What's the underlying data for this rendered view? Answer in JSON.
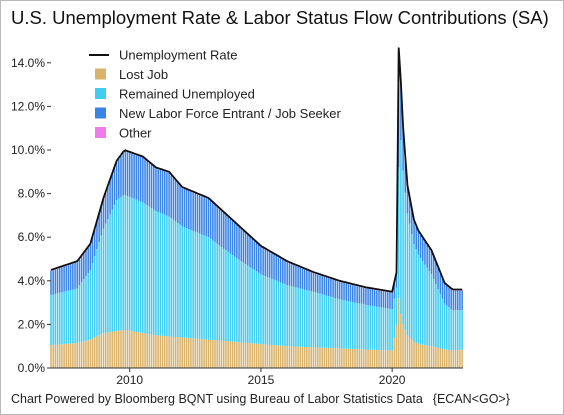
{
  "title": "U.S. Unemployment Rate & Labor Status Flow Contributions (SA)",
  "footer": {
    "source": "Chart Powered by Bloomberg BQNT using Bureau of Labor Statistics Data",
    "code": "{ECAN<GO>}"
  },
  "colors": {
    "lost_job": "#d9b36c",
    "remained_unemployed": "#40cdf0",
    "new_entrant": "#3a84e6",
    "other": "#f07cec",
    "rate_line": "#111111"
  },
  "chart_data": {
    "type": "bar",
    "x_range": [
      2007.0,
      2022.7
    ],
    "xticks": [
      {
        "value": 2010,
        "label": "2010"
      },
      {
        "value": 2015,
        "label": "2015"
      },
      {
        "value": 2020,
        "label": "2020"
      }
    ],
    "ylim": [
      0,
      15
    ],
    "yticks": [
      {
        "value": 0,
        "label": "0.0%"
      },
      {
        "value": 2,
        "label": "2.0%"
      },
      {
        "value": 4,
        "label": "4.0%"
      },
      {
        "value": 6,
        "label": "6.0%"
      },
      {
        "value": 8,
        "label": "8.0%"
      },
      {
        "value": 10,
        "label": "10.0%"
      },
      {
        "value": 12,
        "label": "12.0%"
      },
      {
        "value": 14,
        "label": "14.0%"
      }
    ],
    "legend_position": "top-left",
    "legend": [
      {
        "name": "Unemployment Rate",
        "kind": "line",
        "color": "#111111"
      },
      {
        "name": "Lost Job",
        "kind": "box",
        "color": "#d9b36c"
      },
      {
        "name": "Remained Unemployed",
        "kind": "box",
        "color": "#40cdf0"
      },
      {
        "name": "New Labor Force Entrant / Job Seeker",
        "kind": "box",
        "color": "#3a84e6"
      },
      {
        "name": "Other",
        "kind": "box",
        "color": "#f07cec"
      }
    ],
    "keyframes": [
      {
        "x": 2007.0,
        "rate": 4.5,
        "lost": 1.05,
        "remained": 2.3,
        "other": 0.05
      },
      {
        "x": 2008.0,
        "rate": 4.9,
        "lost": 1.15,
        "remained": 2.5,
        "other": 0.05
      },
      {
        "x": 2008.5,
        "rate": 5.7,
        "lost": 1.3,
        "remained": 3.2,
        "other": 0.05
      },
      {
        "x": 2009.0,
        "rate": 7.8,
        "lost": 1.6,
        "remained": 4.8,
        "other": 0.05
      },
      {
        "x": 2009.5,
        "rate": 9.5,
        "lost": 1.7,
        "remained": 6.0,
        "other": 0.05
      },
      {
        "x": 2009.8,
        "rate": 10.0,
        "lost": 1.75,
        "remained": 6.2,
        "other": 0.05
      },
      {
        "x": 2010.5,
        "rate": 9.7,
        "lost": 1.6,
        "remained": 6.0,
        "other": 0.05
      },
      {
        "x": 2011.0,
        "rate": 9.2,
        "lost": 1.5,
        "remained": 5.7,
        "other": 0.05
      },
      {
        "x": 2011.5,
        "rate": 9.0,
        "lost": 1.45,
        "remained": 5.5,
        "other": 0.05
      },
      {
        "x": 2012.0,
        "rate": 8.3,
        "lost": 1.4,
        "remained": 5.1,
        "other": 0.05
      },
      {
        "x": 2013.0,
        "rate": 7.8,
        "lost": 1.3,
        "remained": 4.7,
        "other": 0.05
      },
      {
        "x": 2014.0,
        "rate": 6.7,
        "lost": 1.2,
        "remained": 3.9,
        "other": 0.05
      },
      {
        "x": 2015.0,
        "rate": 5.6,
        "lost": 1.1,
        "remained": 3.2,
        "other": 0.05
      },
      {
        "x": 2016.0,
        "rate": 4.9,
        "lost": 1.0,
        "remained": 2.8,
        "other": 0.05
      },
      {
        "x": 2017.0,
        "rate": 4.4,
        "lost": 0.95,
        "remained": 2.55,
        "other": 0.05
      },
      {
        "x": 2018.0,
        "rate": 4.0,
        "lost": 0.9,
        "remained": 2.25,
        "other": 0.05
      },
      {
        "x": 2019.0,
        "rate": 3.7,
        "lost": 0.85,
        "remained": 2.05,
        "other": 0.05
      },
      {
        "x": 2020.0,
        "rate": 3.5,
        "lost": 0.8,
        "remained": 1.9,
        "other": 0.05
      },
      {
        "x": 2020.17,
        "rate": 4.4,
        "lost": 2.0,
        "remained": 1.7,
        "other": 0.05
      },
      {
        "x": 2020.25,
        "rate": 14.7,
        "lost": 3.2,
        "remained": 6.0,
        "other": 0.05
      },
      {
        "x": 2020.33,
        "rate": 13.2,
        "lost": 2.5,
        "remained": 8.0,
        "other": 0.05
      },
      {
        "x": 2020.42,
        "rate": 11.0,
        "lost": 2.0,
        "remained": 7.0,
        "other": 0.05
      },
      {
        "x": 2020.58,
        "rate": 8.4,
        "lost": 1.5,
        "remained": 5.6,
        "other": 0.05
      },
      {
        "x": 2020.83,
        "rate": 6.8,
        "lost": 1.2,
        "remained": 4.5,
        "other": 0.05
      },
      {
        "x": 2021.0,
        "rate": 6.3,
        "lost": 1.1,
        "remained": 4.1,
        "other": 0.05
      },
      {
        "x": 2021.5,
        "rate": 5.4,
        "lost": 1.0,
        "remained": 3.3,
        "other": 0.05
      },
      {
        "x": 2022.0,
        "rate": 3.9,
        "lost": 0.85,
        "remained": 2.1,
        "other": 0.05
      },
      {
        "x": 2022.3,
        "rate": 3.6,
        "lost": 0.8,
        "remained": 1.85,
        "other": 0.05
      },
      {
        "x": 2022.7,
        "rate": 3.6,
        "lost": 0.85,
        "remained": 1.8,
        "other": 0.05
      }
    ]
  }
}
